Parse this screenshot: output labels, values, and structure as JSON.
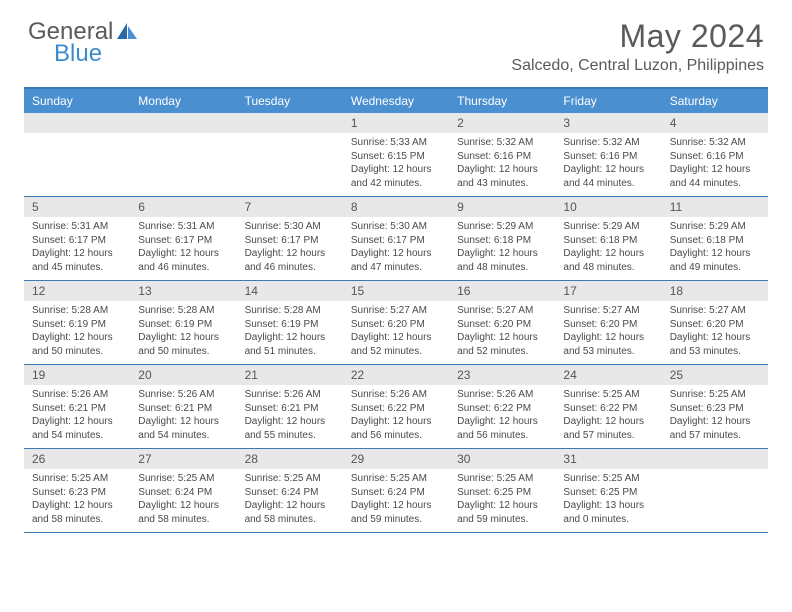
{
  "logo": {
    "part1": "General",
    "part2": "Blue"
  },
  "title": "May 2024",
  "location": "Salcedo, Central Luzon, Philippines",
  "colors": {
    "brand_blue": "#3b8bd0",
    "header_blue": "#4a8fd0",
    "rule_blue": "#3b7ab8",
    "strip_gray": "#e8e8e8",
    "text": "#4a4a4a"
  },
  "days_of_week": [
    "Sunday",
    "Monday",
    "Tuesday",
    "Wednesday",
    "Thursday",
    "Friday",
    "Saturday"
  ],
  "weeks": [
    [
      null,
      null,
      null,
      {
        "n": "1",
        "sr": "5:33 AM",
        "ss": "6:15 PM",
        "dl": "12 hours and 42 minutes."
      },
      {
        "n": "2",
        "sr": "5:32 AM",
        "ss": "6:16 PM",
        "dl": "12 hours and 43 minutes."
      },
      {
        "n": "3",
        "sr": "5:32 AM",
        "ss": "6:16 PM",
        "dl": "12 hours and 44 minutes."
      },
      {
        "n": "4",
        "sr": "5:32 AM",
        "ss": "6:16 PM",
        "dl": "12 hours and 44 minutes."
      }
    ],
    [
      {
        "n": "5",
        "sr": "5:31 AM",
        "ss": "6:17 PM",
        "dl": "12 hours and 45 minutes."
      },
      {
        "n": "6",
        "sr": "5:31 AM",
        "ss": "6:17 PM",
        "dl": "12 hours and 46 minutes."
      },
      {
        "n": "7",
        "sr": "5:30 AM",
        "ss": "6:17 PM",
        "dl": "12 hours and 46 minutes."
      },
      {
        "n": "8",
        "sr": "5:30 AM",
        "ss": "6:17 PM",
        "dl": "12 hours and 47 minutes."
      },
      {
        "n": "9",
        "sr": "5:29 AM",
        "ss": "6:18 PM",
        "dl": "12 hours and 48 minutes."
      },
      {
        "n": "10",
        "sr": "5:29 AM",
        "ss": "6:18 PM",
        "dl": "12 hours and 48 minutes."
      },
      {
        "n": "11",
        "sr": "5:29 AM",
        "ss": "6:18 PM",
        "dl": "12 hours and 49 minutes."
      }
    ],
    [
      {
        "n": "12",
        "sr": "5:28 AM",
        "ss": "6:19 PM",
        "dl": "12 hours and 50 minutes."
      },
      {
        "n": "13",
        "sr": "5:28 AM",
        "ss": "6:19 PM",
        "dl": "12 hours and 50 minutes."
      },
      {
        "n": "14",
        "sr": "5:28 AM",
        "ss": "6:19 PM",
        "dl": "12 hours and 51 minutes."
      },
      {
        "n": "15",
        "sr": "5:27 AM",
        "ss": "6:20 PM",
        "dl": "12 hours and 52 minutes."
      },
      {
        "n": "16",
        "sr": "5:27 AM",
        "ss": "6:20 PM",
        "dl": "12 hours and 52 minutes."
      },
      {
        "n": "17",
        "sr": "5:27 AM",
        "ss": "6:20 PM",
        "dl": "12 hours and 53 minutes."
      },
      {
        "n": "18",
        "sr": "5:27 AM",
        "ss": "6:20 PM",
        "dl": "12 hours and 53 minutes."
      }
    ],
    [
      {
        "n": "19",
        "sr": "5:26 AM",
        "ss": "6:21 PM",
        "dl": "12 hours and 54 minutes."
      },
      {
        "n": "20",
        "sr": "5:26 AM",
        "ss": "6:21 PM",
        "dl": "12 hours and 54 minutes."
      },
      {
        "n": "21",
        "sr": "5:26 AM",
        "ss": "6:21 PM",
        "dl": "12 hours and 55 minutes."
      },
      {
        "n": "22",
        "sr": "5:26 AM",
        "ss": "6:22 PM",
        "dl": "12 hours and 56 minutes."
      },
      {
        "n": "23",
        "sr": "5:26 AM",
        "ss": "6:22 PM",
        "dl": "12 hours and 56 minutes."
      },
      {
        "n": "24",
        "sr": "5:25 AM",
        "ss": "6:22 PM",
        "dl": "12 hours and 57 minutes."
      },
      {
        "n": "25",
        "sr": "5:25 AM",
        "ss": "6:23 PM",
        "dl": "12 hours and 57 minutes."
      }
    ],
    [
      {
        "n": "26",
        "sr": "5:25 AM",
        "ss": "6:23 PM",
        "dl": "12 hours and 58 minutes."
      },
      {
        "n": "27",
        "sr": "5:25 AM",
        "ss": "6:24 PM",
        "dl": "12 hours and 58 minutes."
      },
      {
        "n": "28",
        "sr": "5:25 AM",
        "ss": "6:24 PM",
        "dl": "12 hours and 58 minutes."
      },
      {
        "n": "29",
        "sr": "5:25 AM",
        "ss": "6:24 PM",
        "dl": "12 hours and 59 minutes."
      },
      {
        "n": "30",
        "sr": "5:25 AM",
        "ss": "6:25 PM",
        "dl": "12 hours and 59 minutes."
      },
      {
        "n": "31",
        "sr": "5:25 AM",
        "ss": "6:25 PM",
        "dl": "13 hours and 0 minutes."
      },
      null
    ]
  ],
  "labels": {
    "sunrise": "Sunrise:",
    "sunset": "Sunset:",
    "daylight": "Daylight:"
  }
}
